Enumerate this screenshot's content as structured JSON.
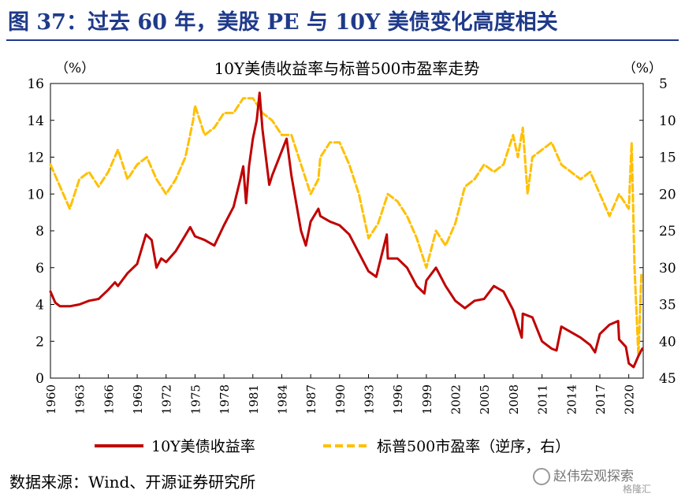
{
  "figure_title": "图 37：过去 60 年，美股 PE 与 10Y 美债变化高度相关",
  "source": "数据来源：Wind、开源证券研究所",
  "watermark": "赵伟宏观探索",
  "watermark_sub": "格隆汇",
  "chart_data": {
    "type": "line",
    "title": "10Y美债收益率与标普500市盈率走势",
    "left_axis_unit": "（%）",
    "right_axis_unit": "（%）",
    "ylim_left": [
      0,
      16
    ],
    "yticks_left": [
      0,
      2,
      4,
      6,
      8,
      10,
      12,
      14,
      16
    ],
    "ylim_right_inverted": [
      45,
      5
    ],
    "yticks_right": [
      5,
      10,
      15,
      20,
      25,
      30,
      35,
      40,
      45
    ],
    "x_range": [
      1960,
      2021.5
    ],
    "x_ticks": [
      "1960",
      "1963",
      "1966",
      "1969",
      "1972",
      "1975",
      "1978",
      "1981",
      "1984",
      "1987",
      "1990",
      "1993",
      "1996",
      "1999",
      "2002",
      "2005",
      "2008",
      "2011",
      "2014",
      "2017",
      "2020"
    ],
    "legend_placement": "bottom",
    "series": [
      {
        "name": "10Y美债收益率",
        "axis": "left",
        "color": "#c00000",
        "style": "solid",
        "x": [
          1960,
          1960.5,
          1961,
          1962,
          1963,
          1964,
          1965,
          1966,
          1966.7,
          1967,
          1968,
          1969,
          1969.9,
          1970.5,
          1971,
          1971.5,
          1972,
          1973,
          1973.7,
          1974.5,
          1975,
          1976,
          1977,
          1978,
          1979,
          1979.7,
          1980,
          1980.3,
          1980.6,
          1981,
          1981.4,
          1981.7,
          1982,
          1982.7,
          1983,
          1984.5,
          1985,
          1986,
          1986.5,
          1987,
          1987.8,
          1988,
          1989,
          1990,
          1991,
          1992,
          1993,
          1993.8,
          1994.9,
          1995,
          1996,
          1997,
          1998,
          1998.8,
          1999,
          2000,
          2001,
          2002,
          2003,
          2004,
          2005,
          2006,
          2007,
          2008,
          2008.9,
          2009,
          2010,
          2011,
          2012,
          2012.5,
          2013,
          2014,
          2015,
          2016,
          2016.5,
          2017,
          2018,
          2018.9,
          2019,
          2019.7,
          2020,
          2020.5,
          2021,
          2021.4
        ],
        "y": [
          4.7,
          4.1,
          3.9,
          3.9,
          4.0,
          4.2,
          4.3,
          4.8,
          5.2,
          5.0,
          5.7,
          6.2,
          7.8,
          7.5,
          6.0,
          6.5,
          6.3,
          6.9,
          7.5,
          8.2,
          7.7,
          7.5,
          7.2,
          8.3,
          9.3,
          10.8,
          11.5,
          9.5,
          11.5,
          13.0,
          14.0,
          15.5,
          13.5,
          10.5,
          11.0,
          13.0,
          11.0,
          8.0,
          7.2,
          8.5,
          9.2,
          8.8,
          8.5,
          8.3,
          7.8,
          6.8,
          5.8,
          5.5,
          7.8,
          6.5,
          6.5,
          6.0,
          5.0,
          4.6,
          5.3,
          6.0,
          5.0,
          4.2,
          3.8,
          4.2,
          4.3,
          5.0,
          4.7,
          3.7,
          2.2,
          3.5,
          3.3,
          2.0,
          1.6,
          1.5,
          2.8,
          2.5,
          2.2,
          1.8,
          1.4,
          2.4,
          2.9,
          3.1,
          2.1,
          1.7,
          0.8,
          0.6,
          1.2,
          1.6
        ]
      },
      {
        "name": "标普500市盈率（逆序，右）",
        "axis": "right",
        "color": "#ffc000",
        "style": "dashed",
        "x": [
          1960,
          1961,
          1962,
          1963,
          1964,
          1965,
          1966,
          1967,
          1968,
          1969,
          1970,
          1971,
          1972,
          1973,
          1974,
          1974.8,
          1975,
          1976,
          1977,
          1978,
          1979,
          1980,
          1981,
          1982,
          1983,
          1984,
          1985,
          1986,
          1987,
          1987.8,
          1988,
          1989,
          1990,
          1991,
          1992,
          1993,
          1994,
          1995,
          1996,
          1997,
          1998,
          1999,
          1999.8,
          2000,
          2001,
          2002,
          2003,
          2004,
          2005,
          2006,
          2007,
          2008,
          2008.5,
          2009,
          2009.5,
          2010,
          2011,
          2012,
          2013,
          2014,
          2015,
          2016,
          2017,
          2018,
          2019,
          2020,
          2020.3,
          2020.6,
          2021,
          2021.3
        ],
        "y": [
          16,
          19,
          22,
          18,
          17,
          19,
          17,
          14,
          18,
          16,
          15,
          18,
          20,
          18,
          15,
          10,
          8,
          12,
          11,
          9,
          9,
          7,
          7,
          9,
          10,
          12,
          12,
          16,
          20,
          18,
          15,
          13,
          13,
          16,
          20,
          26,
          24,
          20,
          21,
          23,
          26,
          30,
          26,
          25,
          27,
          24,
          19,
          18,
          16,
          17,
          16,
          12,
          15,
          11,
          20,
          15,
          14,
          13,
          16,
          17,
          18,
          17,
          20,
          23,
          20,
          22,
          13,
          30,
          42,
          31
        ]
      }
    ]
  }
}
